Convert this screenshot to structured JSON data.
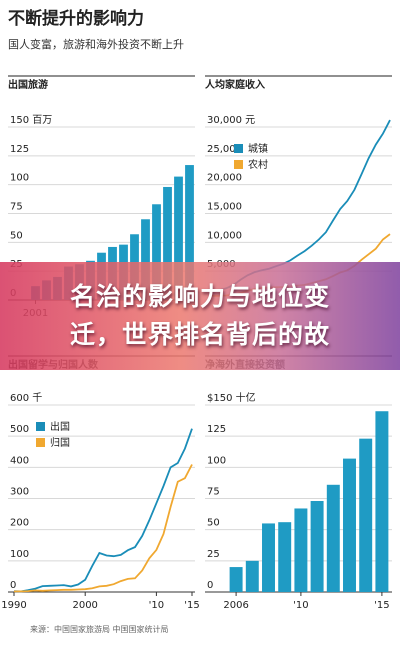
{
  "title": "不断提升的影响力",
  "subtitle": "国人变富，旅游和海外投资不断上升",
  "banner": [
    "名治的影响力与地位变",
    "迁，世界排名背后的故"
  ],
  "source": "来源：中国国家旅游局 中国国家统计局",
  "chart_data": [
    {
      "type": "bar",
      "title": "出国旅游",
      "color": "#1f9bc4",
      "categories": [
        "2001",
        null,
        null,
        null,
        null,
        null,
        null,
        null,
        null,
        null,
        null,
        null,
        null,
        null,
        null
      ],
      "values": [
        12,
        17,
        20,
        29,
        31,
        34,
        41,
        46,
        48,
        57,
        70,
        83,
        98,
        107,
        117
      ],
      "ylim": [
        0,
        150
      ],
      "yticks": [
        0,
        25,
        50,
        75,
        100,
        125,
        {
          "value": 150,
          "label": "150 百万"
        }
      ],
      "grid": true
    },
    {
      "type": "line",
      "title": "人均家庭收入",
      "x": [
        1990,
        1991,
        1992,
        1993,
        1994,
        1995,
        1996,
        1997,
        1998,
        1999,
        2000,
        2001,
        2002,
        2003,
        2004,
        2005,
        2006,
        2007,
        2008,
        2009,
        2010,
        2011,
        2012,
        2013,
        2014,
        2015
      ],
      "xlim": [
        1990,
        2015
      ],
      "series": [
        {
          "name": "城镇",
          "color": "#1a8db8",
          "values": [
            1510,
            1700,
            2027,
            2577,
            3496,
            4283,
            4839,
            5160,
            5425,
            5854,
            6280,
            6860,
            7703,
            8472,
            9422,
            10493,
            11759,
            13786,
            15781,
            17175,
            19109,
            21810,
            24565,
            26955,
            28844,
            31195
          ]
        },
        {
          "name": "农村",
          "color": "#f0a830",
          "values": [
            686,
            709,
            784,
            922,
            1221,
            1578,
            1926,
            2090,
            2162,
            2210,
            2253,
            2366,
            2476,
            2622,
            2936,
            3255,
            3587,
            4140,
            4761,
            5153,
            5919,
            6977,
            7917,
            8896,
            10489,
            11422
          ]
        }
      ],
      "ylim": [
        0,
        30000
      ],
      "yticks": [
        {
          "value": 5000,
          "label": "5,000"
        },
        {
          "value": 10000,
          "label": "10,000"
        },
        {
          "value": 15000,
          "label": "15,000"
        },
        {
          "value": 20000,
          "label": "20,000"
        },
        {
          "value": 25000,
          "label": "25,000"
        },
        {
          "value": 30000,
          "label": "30,000 元"
        }
      ],
      "grid": true,
      "legend": "top-left"
    },
    {
      "type": "line",
      "title": "出国留学与归国人数",
      "x": [
        1990,
        1991,
        1992,
        1993,
        1994,
        1995,
        1996,
        1997,
        1998,
        1999,
        2000,
        2001,
        2002,
        2003,
        2004,
        2005,
        2006,
        2007,
        2008,
        2009,
        2010,
        2011,
        2012,
        2013,
        2014,
        2015
      ],
      "xlim": [
        1990,
        2015
      ],
      "xticks": [
        1990,
        2000,
        {
          "value": 2010,
          "label": "'10"
        },
        {
          "value": 2015,
          "label": "'15"
        }
      ],
      "series": [
        {
          "name": "出国",
          "color": "#1a8db8",
          "values": [
            3,
            2,
            6,
            11,
            19,
            20,
            21,
            22,
            18,
            24,
            39,
            84,
            125,
            117,
            115,
            119,
            134,
            144,
            180,
            230,
            285,
            340,
            400,
            414,
            460,
            524
          ]
        },
        {
          "name": "归国",
          "color": "#f0a830",
          "values": [
            2,
            2,
            3,
            5,
            4,
            5,
            6,
            7,
            7,
            8,
            9,
            12,
            18,
            20,
            25,
            35,
            42,
            44,
            69,
            108,
            135,
            186,
            273,
            354,
            365,
            409
          ]
        }
      ],
      "ylim": [
        0,
        600
      ],
      "yticks": [
        0,
        100,
        200,
        300,
        400,
        500,
        {
          "value": 600,
          "label": "600 千"
        }
      ],
      "grid": true,
      "legend": "top-left"
    },
    {
      "type": "bar",
      "title": "净海外直接投资额",
      "color": "#1f9bc4",
      "categories": [
        "2006",
        null,
        null,
        null,
        "'10",
        null,
        null,
        null,
        null,
        "'15"
      ],
      "values": [
        20,
        25,
        55,
        56,
        67,
        73,
        86,
        107,
        123,
        145
      ],
      "ylim": [
        0,
        150
      ],
      "yticks": [
        0,
        25,
        50,
        75,
        100,
        125,
        {
          "value": 150,
          "label": "$150 十亿"
        }
      ],
      "grid": true
    }
  ]
}
